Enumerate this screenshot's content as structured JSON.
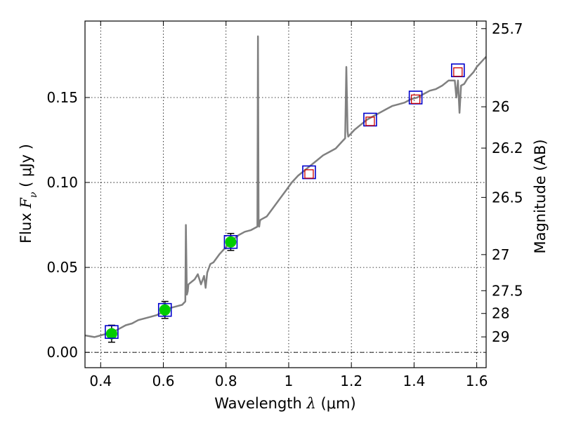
{
  "chart_data": {
    "type": "line",
    "xlabel": {
      "pre": "Wavelength  ",
      "sym": "λ",
      "post": " (μm)"
    },
    "ylabel": {
      "pre": "Flux  ",
      "sym": "F",
      "sub": "ν",
      "post": "  ( μJy )"
    },
    "y2label": "Magnitude (AB)",
    "xlim": [
      0.35,
      1.63
    ],
    "ylim": [
      -0.009,
      0.195
    ],
    "xticks": [
      0.4,
      0.6,
      0.8,
      1.0,
      1.2,
      1.4,
      1.6
    ],
    "xtick_labels": [
      "0.4",
      "0.6",
      "0.8",
      "1",
      "1.2",
      "1.4",
      "1.6"
    ],
    "yticks": [
      0.0,
      0.05,
      0.1,
      0.15
    ],
    "ytick_labels": [
      "0.00",
      "0.05",
      "0.10",
      "0.15"
    ],
    "y2ticks": [
      {
        "label": "25.7",
        "mag": 25.7
      },
      {
        "label": "26",
        "mag": 26.0
      },
      {
        "label": "26.2",
        "mag": 26.2
      },
      {
        "label": "26.5",
        "mag": 26.5
      },
      {
        "label": "27",
        "mag": 27.0
      },
      {
        "label": "27.5",
        "mag": 27.5
      },
      {
        "label": "28",
        "mag": 28.0
      },
      {
        "label": "29",
        "mag": 29.0
      }
    ],
    "grid": true,
    "colors": {
      "spectrum": "#808080",
      "observed": "#00cc00",
      "model_box": "#0000cc",
      "model_box2": "#cc0000",
      "zero_line": "#000000"
    },
    "series": [
      {
        "kind": "spectrum",
        "x": [
          0.35,
          0.38,
          0.4,
          0.42,
          0.44,
          0.46,
          0.48,
          0.5,
          0.52,
          0.54,
          0.56,
          0.58,
          0.6,
          0.62,
          0.64,
          0.66,
          0.67,
          0.672,
          0.675,
          0.678,
          0.68,
          0.7,
          0.71,
          0.72,
          0.73,
          0.735,
          0.74,
          0.75,
          0.76,
          0.78,
          0.8,
          0.82,
          0.84,
          0.86,
          0.88,
          0.9,
          0.902,
          0.904,
          0.906,
          0.908,
          0.91,
          0.93,
          0.95,
          0.97,
          0.99,
          1.01,
          1.03,
          1.05,
          1.07,
          1.09,
          1.11,
          1.13,
          1.15,
          1.17,
          1.18,
          1.184,
          1.188,
          1.19,
          1.21,
          1.23,
          1.25,
          1.27,
          1.29,
          1.31,
          1.33,
          1.35,
          1.37,
          1.39,
          1.41,
          1.43,
          1.45,
          1.47,
          1.49,
          1.51,
          1.53,
          1.535,
          1.54,
          1.545,
          1.55,
          1.56,
          1.57,
          1.58,
          1.59,
          1.6,
          1.62,
          1.63
        ],
        "y": [
          0.01,
          0.009,
          0.01,
          0.011,
          0.012,
          0.014,
          0.016,
          0.017,
          0.019,
          0.02,
          0.021,
          0.022,
          0.024,
          0.026,
          0.027,
          0.028,
          0.03,
          0.075,
          0.034,
          0.036,
          0.04,
          0.043,
          0.046,
          0.04,
          0.045,
          0.038,
          0.047,
          0.052,
          0.053,
          0.058,
          0.062,
          0.066,
          0.069,
          0.071,
          0.072,
          0.074,
          0.186,
          0.078,
          0.074,
          0.077,
          0.078,
          0.08,
          0.085,
          0.09,
          0.095,
          0.1,
          0.104,
          0.107,
          0.11,
          0.113,
          0.116,
          0.118,
          0.12,
          0.124,
          0.126,
          0.168,
          0.13,
          0.127,
          0.131,
          0.134,
          0.137,
          0.139,
          0.141,
          0.143,
          0.145,
          0.146,
          0.147,
          0.149,
          0.15,
          0.152,
          0.154,
          0.155,
          0.157,
          0.16,
          0.16,
          0.15,
          0.16,
          0.141,
          0.157,
          0.158,
          0.161,
          0.163,
          0.165,
          0.168,
          0.172,
          0.174
        ]
      },
      {
        "kind": "observed",
        "x": [
          0.435,
          0.605,
          0.815
        ],
        "y": [
          0.011,
          0.025,
          0.065
        ],
        "yerr": [
          0.005,
          0.005,
          0.005
        ]
      },
      {
        "kind": "model_blue",
        "x": [
          0.435,
          0.605,
          0.815,
          1.065,
          1.26,
          1.405,
          1.54
        ],
        "y": [
          0.012,
          0.025,
          0.065,
          0.106,
          0.137,
          0.15,
          0.166
        ]
      },
      {
        "kind": "model_red",
        "x": [
          1.065,
          1.26,
          1.405,
          1.54
        ],
        "y": [
          0.105,
          0.136,
          0.149,
          0.165
        ]
      }
    ]
  }
}
